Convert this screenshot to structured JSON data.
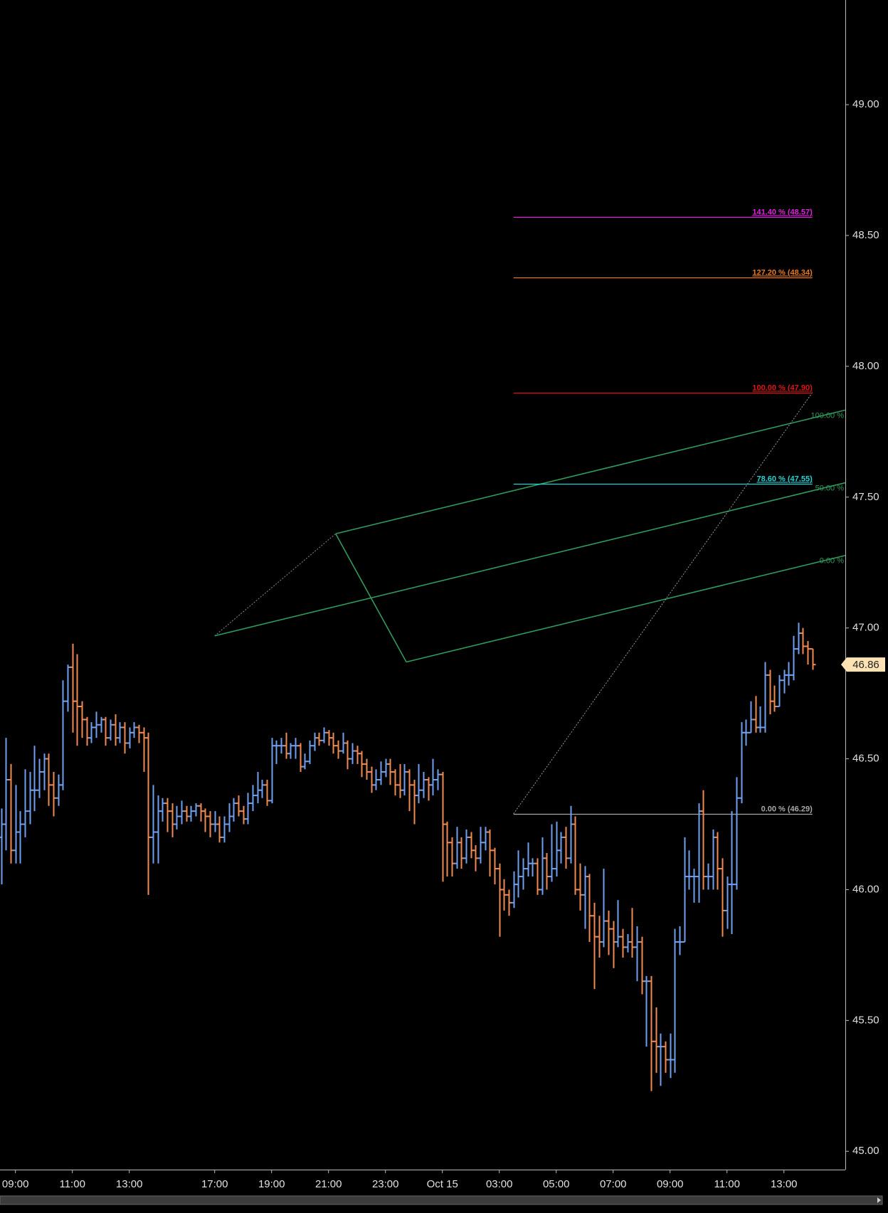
{
  "chart_data": {
    "type": "ohlc",
    "up_color": "#6f9fef",
    "down_color": "#f08a50",
    "ylim": [
      44.93,
      49.4
    ],
    "yticks": [
      {
        "value": 45,
        "label": "45.00"
      },
      {
        "value": 45.5,
        "label": "45.50"
      },
      {
        "value": 46,
        "label": "46.00"
      },
      {
        "value": 46.5,
        "label": "46.50"
      },
      {
        "value": 47,
        "label": "47.00"
      },
      {
        "value": 47.5,
        "label": "47.50"
      },
      {
        "value": 48,
        "label": "48.00"
      },
      {
        "value": 48.5,
        "label": "48.50"
      },
      {
        "value": 49,
        "label": "49.00"
      }
    ],
    "categories": [
      null,
      null,
      null,
      "09:00",
      null,
      null,
      null,
      null,
      null,
      null,
      null,
      null,
      null,
      null,
      null,
      "11:00",
      null,
      null,
      null,
      null,
      null,
      null,
      null,
      null,
      null,
      null,
      null,
      "13:00",
      null,
      null,
      null,
      null,
      null,
      null,
      null,
      null,
      null,
      null,
      null,
      null,
      null,
      null,
      null,
      null,
      null,
      "17:00",
      null,
      null,
      null,
      null,
      null,
      null,
      null,
      null,
      null,
      null,
      null,
      "19:00",
      null,
      null,
      null,
      null,
      null,
      null,
      null,
      null,
      null,
      null,
      null,
      "21:00",
      null,
      null,
      null,
      null,
      null,
      null,
      null,
      null,
      null,
      null,
      null,
      "23:00",
      null,
      null,
      null,
      null,
      null,
      null,
      null,
      null,
      null,
      null,
      null,
      "Oct 15",
      null,
      null,
      null,
      null,
      null,
      null,
      null,
      null,
      null,
      null,
      null,
      "03:00",
      null,
      null,
      null,
      null,
      null,
      null,
      null,
      null,
      null,
      null,
      null,
      "05:00",
      null,
      null,
      null,
      null,
      null,
      null,
      null,
      null,
      null,
      null,
      null,
      "07:00",
      null,
      null,
      null,
      null,
      null,
      null,
      null,
      null,
      null,
      null,
      null,
      "09:00",
      null,
      null,
      null,
      null,
      null,
      null,
      null,
      null,
      null,
      null,
      null,
      "11:00",
      null,
      null,
      null,
      null,
      null,
      null,
      null,
      null,
      null,
      null,
      null,
      "13:00",
      null,
      null,
      null,
      null,
      null,
      null
    ],
    "open": [
      46.2,
      46.25,
      46.42,
      46.15,
      46.22,
      46.25,
      46.3,
      46.38,
      46.38,
      46.45,
      46.5,
      46.4,
      46.35,
      46.4,
      46.72,
      46.85,
      46.72,
      46.7,
      46.65,
      46.58,
      46.62,
      46.63,
      46.65,
      46.58,
      46.63,
      46.58,
      46.62,
      46.56,
      46.6,
      46.62,
      46.6,
      46.58,
      46.2,
      46.22,
      46.3,
      46.33,
      46.3,
      46.25,
      46.28,
      46.3,
      46.28,
      46.3,
      46.32,
      46.3,
      46.28,
      46.25,
      46.25,
      46.2,
      46.25,
      46.28,
      46.33,
      46.3,
      46.27,
      46.33,
      46.36,
      46.38,
      46.4,
      46.34,
      46.55,
      46.55,
      46.55,
      46.52,
      46.55,
      46.55,
      46.47,
      46.49,
      46.55,
      46.58,
      46.57,
      46.6,
      46.58,
      46.55,
      46.53,
      46.56,
      46.5,
      46.53,
      46.52,
      46.48,
      46.45,
      46.4,
      46.42,
      46.45,
      46.48,
      46.45,
      46.4,
      46.38,
      46.45,
      46.4,
      46.36,
      46.38,
      46.42,
      46.4,
      46.42,
      46.44,
      46.25,
      46.18,
      46.1,
      46.18,
      46.12,
      46.2,
      46.15,
      46.12,
      46.18,
      46.22,
      46.15,
      46.08,
      46.0,
      45.98,
      45.95,
      46.02,
      46.05,
      46.08,
      46.1,
      46.1,
      46.0,
      46.12,
      46.05,
      46.08,
      46.15,
      46.2,
      46.12,
      46.25,
      46.0,
      45.98,
      46.05,
      45.9,
      45.82,
      45.8,
      45.88,
      45.85,
      45.8,
      45.82,
      45.78,
      45.8,
      45.78,
      45.8,
      45.65,
      45.65,
      45.42,
      45.4,
      45.4,
      45.35,
      45.35,
      45.8,
      45.8,
      46.05,
      46.05,
      46.05,
      46.3,
      46.05,
      46.05,
      46.2,
      46.08,
      45.92,
      46.02,
      46.02,
      46.35,
      46.6,
      46.6,
      46.65,
      46.62,
      46.62,
      46.82,
      46.72,
      46.7,
      46.8,
      46.82,
      46.82,
      46.92,
      46.98,
      46.93,
      46.92
    ],
    "high": [
      46.31,
      46.58,
      46.48,
      46.4,
      46.3,
      46.46,
      46.45,
      46.55,
      46.5,
      46.52,
      46.52,
      46.45,
      46.44,
      46.8,
      46.86,
      46.94,
      46.9,
      46.72,
      46.66,
      46.64,
      46.68,
      46.66,
      46.66,
      46.65,
      46.67,
      46.64,
      46.64,
      46.62,
      46.64,
      46.63,
      46.62,
      46.6,
      46.4,
      46.36,
      46.35,
      46.35,
      46.33,
      46.32,
      46.34,
      46.32,
      46.32,
      46.33,
      46.33,
      46.31,
      46.3,
      46.3,
      46.28,
      46.28,
      46.33,
      46.35,
      46.36,
      46.32,
      46.37,
      46.4,
      46.45,
      46.42,
      46.42,
      46.58,
      46.57,
      46.58,
      46.6,
      46.56,
      46.58,
      46.56,
      46.52,
      46.57,
      46.6,
      46.6,
      46.62,
      46.61,
      46.6,
      46.57,
      46.6,
      46.57,
      46.56,
      46.55,
      46.53,
      46.5,
      46.47,
      46.46,
      46.49,
      46.5,
      46.5,
      46.46,
      46.48,
      46.48,
      46.46,
      46.42,
      46.48,
      46.45,
      46.43,
      46.5,
      46.46,
      46.45,
      46.26,
      46.2,
      46.24,
      46.2,
      46.23,
      46.22,
      46.17,
      46.24,
      46.24,
      46.23,
      46.16,
      46.1,
      46.04,
      46.0,
      46.07,
      46.15,
      46.12,
      46.18,
      46.12,
      46.12,
      46.2,
      46.14,
      46.25,
      46.26,
      46.22,
      46.24,
      46.32,
      46.28,
      46.1,
      46.09,
      46.06,
      45.95,
      45.9,
      46.08,
      45.92,
      45.88,
      45.96,
      45.85,
      45.83,
      45.93,
      45.86,
      45.82,
      45.67,
      45.67,
      45.55,
      45.45,
      45.42,
      45.45,
      45.85,
      45.86,
      46.2,
      46.15,
      46.08,
      46.33,
      46.38,
      46.1,
      46.23,
      46.22,
      46.12,
      46.05,
      46.3,
      46.43,
      46.64,
      46.65,
      46.72,
      46.74,
      46.7,
      46.87,
      46.84,
      46.78,
      46.82,
      46.84,
      46.87,
      46.97,
      47.02,
      47.0,
      46.95,
      46.92
    ],
    "low": [
      46.02,
      46.15,
      46.1,
      46.1,
      46.1,
      46.2,
      46.25,
      46.3,
      46.35,
      46.38,
      46.32,
      46.28,
      46.32,
      46.38,
      46.68,
      46.6,
      46.55,
      46.58,
      46.55,
      46.56,
      46.58,
      46.6,
      46.55,
      46.57,
      46.55,
      46.56,
      46.52,
      46.54,
      46.58,
      46.56,
      46.45,
      45.98,
      46.1,
      46.1,
      46.26,
      46.22,
      46.2,
      46.23,
      46.25,
      46.26,
      46.26,
      46.28,
      46.26,
      46.22,
      46.2,
      46.22,
      46.18,
      46.18,
      46.22,
      46.26,
      46.28,
      46.25,
      46.25,
      46.3,
      46.33,
      46.35,
      46.32,
      46.33,
      46.48,
      46.52,
      46.5,
      46.5,
      46.5,
      46.45,
      46.46,
      46.48,
      46.53,
      46.55,
      46.56,
      46.55,
      46.52,
      46.5,
      46.52,
      46.46,
      46.48,
      46.48,
      46.43,
      46.42,
      46.37,
      46.38,
      46.4,
      46.43,
      46.4,
      46.36,
      46.35,
      46.36,
      46.3,
      46.25,
      46.33,
      46.35,
      46.34,
      46.36,
      46.38,
      46.03,
      46.05,
      46.05,
      46.08,
      46.08,
      46.1,
      46.12,
      46.07,
      46.1,
      46.15,
      46.05,
      46.02,
      45.82,
      45.92,
      45.9,
      45.93,
      45.97,
      46.0,
      46.05,
      46.05,
      45.98,
      45.98,
      46.0,
      46.03,
      46.05,
      46.1,
      46.08,
      46.1,
      45.98,
      45.92,
      45.85,
      45.8,
      45.62,
      45.74,
      45.78,
      45.75,
      45.7,
      45.78,
      45.74,
      45.76,
      45.74,
      45.65,
      45.6,
      45.4,
      45.23,
      45.3,
      45.25,
      45.3,
      45.28,
      45.3,
      45.75,
      45.8,
      46.0,
      45.95,
      45.95,
      46.0,
      46.0,
      46.0,
      46.0,
      45.82,
      45.85,
      45.83,
      46.0,
      46.33,
      46.55,
      46.6,
      46.6,
      46.6,
      46.6,
      46.67,
      46.68,
      46.7,
      46.75,
      46.78,
      46.8,
      46.9,
      46.9,
      46.86,
      46.84
    ],
    "close": [
      46.25,
      46.42,
      46.15,
      46.22,
      46.25,
      46.3,
      46.38,
      46.38,
      46.45,
      46.5,
      46.4,
      46.35,
      46.4,
      46.72,
      46.85,
      46.72,
      46.7,
      46.65,
      46.58,
      46.62,
      46.63,
      46.65,
      46.58,
      46.63,
      46.58,
      46.62,
      46.56,
      46.6,
      46.62,
      46.6,
      46.58,
      46.2,
      46.22,
      46.3,
      46.33,
      46.3,
      46.25,
      46.28,
      46.3,
      46.28,
      46.3,
      46.32,
      46.3,
      46.28,
      46.25,
      46.25,
      46.2,
      46.25,
      46.28,
      46.33,
      46.3,
      46.27,
      46.33,
      46.36,
      46.38,
      46.4,
      46.34,
      46.55,
      46.55,
      46.55,
      46.52,
      46.55,
      46.55,
      46.47,
      46.49,
      46.55,
      46.58,
      46.57,
      46.6,
      46.58,
      46.55,
      46.53,
      46.56,
      46.5,
      46.53,
      46.52,
      46.48,
      46.45,
      46.4,
      46.42,
      46.45,
      46.48,
      46.45,
      46.4,
      46.38,
      46.45,
      46.4,
      46.36,
      46.38,
      46.42,
      46.4,
      46.42,
      46.44,
      46.25,
      46.18,
      46.1,
      46.18,
      46.12,
      46.2,
      46.15,
      46.12,
      46.18,
      46.22,
      46.15,
      46.08,
      46.0,
      45.98,
      45.95,
      46.02,
      46.05,
      46.08,
      46.1,
      46.1,
      46.0,
      46.12,
      46.05,
      46.08,
      46.15,
      46.2,
      46.12,
      46.25,
      46.0,
      45.98,
      46.05,
      45.9,
      45.82,
      45.8,
      45.88,
      45.85,
      45.8,
      45.82,
      45.78,
      45.8,
      45.78,
      45.8,
      45.65,
      45.65,
      45.42,
      45.4,
      45.4,
      45.35,
      45.35,
      45.8,
      45.8,
      46.05,
      46.05,
      46.05,
      46.3,
      46.05,
      46.05,
      46.2,
      46.08,
      45.92,
      46.02,
      46.02,
      46.35,
      46.6,
      46.6,
      46.65,
      46.62,
      46.62,
      46.82,
      46.72,
      46.7,
      46.8,
      46.82,
      46.82,
      46.92,
      46.98,
      46.93,
      46.92,
      46.86
    ],
    "fib_levels": [
      {
        "label": "141.40 % (48.57)",
        "price": 48.57,
        "color": "#dd22dd"
      },
      {
        "label": "127.20 % (48.34)",
        "price": 48.34,
        "color": "#e8781e"
      },
      {
        "label": "100.00 % (47.90)",
        "price": 47.9,
        "color": "#e01414"
      },
      {
        "label": "78.60 % (47.55)",
        "price": 47.55,
        "color": "#22d4d4"
      },
      {
        "label": "0.00 % (46.29)",
        "price": 46.29,
        "color": "#a8a8a8"
      }
    ],
    "pitchfork": {
      "pivots": [
        46.97,
        47.36,
        46.87
      ],
      "levels": [
        "100.00 %",
        "50.00 %",
        "0.00 %"
      ],
      "color": "#2f9a5c"
    }
  }
}
